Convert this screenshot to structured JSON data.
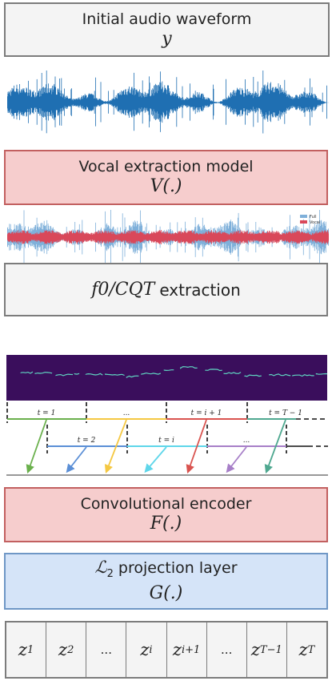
{
  "input_box": {
    "label": "Initial audio waveform",
    "symbol": "y"
  },
  "vocal_box": {
    "label": "Vocal extraction model",
    "symbol": "V(.)"
  },
  "separated_legend": {
    "full": "Full",
    "vocal": "Vocal"
  },
  "f0_box": {
    "symbol": "f0/CQT",
    "label": "extraction"
  },
  "windows": {
    "row1": [
      {
        "label": "t = 1",
        "color": "#6ab04c"
      },
      {
        "label": "...",
        "color": "#f5c842"
      },
      {
        "label": "t = i + 1",
        "color": "#d9534f"
      },
      {
        "label": "t = T − 1",
        "color": "#4fa890"
      }
    ],
    "row2": [
      {
        "label": "t = 2",
        "color": "#5b8fd6"
      },
      {
        "label": "t = i",
        "color": "#5fd6ea"
      },
      {
        "label": "...",
        "color": "#a77fc8"
      }
    ]
  },
  "conv_box": {
    "label": "Convolutional encoder",
    "symbol": "F(.)"
  },
  "l2_box": {
    "label_symbol": "ℒ",
    "label_sub": "2",
    "label": "projection layer",
    "symbol": "G(.)"
  },
  "latents": [
    {
      "base": "z",
      "sub": "1"
    },
    {
      "base": "z",
      "sub": "2"
    },
    {
      "base": "...",
      "sub": ""
    },
    {
      "base": "z",
      "sub": "i"
    },
    {
      "base": "z",
      "sub": "i+1"
    },
    {
      "base": "...",
      "sub": ""
    },
    {
      "base": "z",
      "sub": "T−1"
    },
    {
      "base": "z",
      "sub": "T"
    }
  ],
  "colors": {
    "waveform": "#1f6fb2",
    "vocal": "#d9485a",
    "full_light": "#7fb0da",
    "cqt_bg": "#3a0e5c",
    "cqt_line": "#5fd3c0"
  }
}
